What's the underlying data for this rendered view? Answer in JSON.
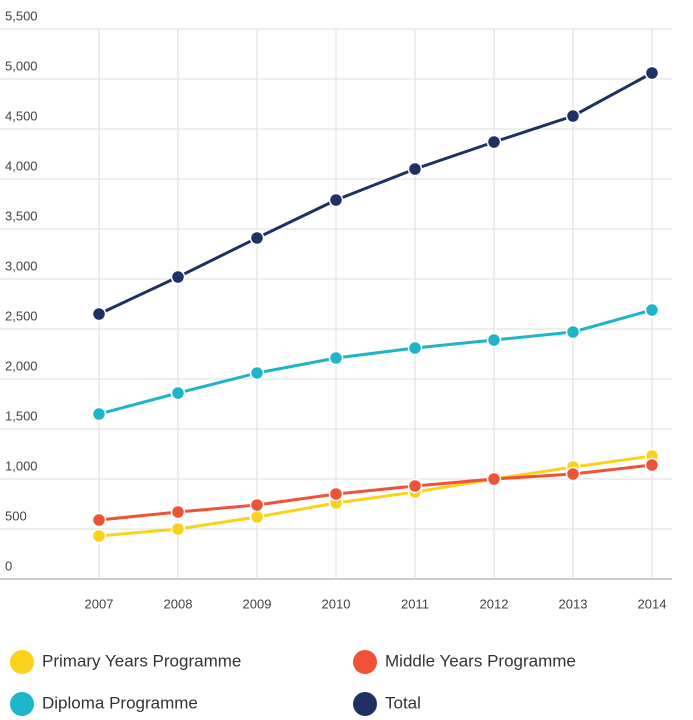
{
  "chart_data": {
    "type": "line",
    "categories": [
      "2007",
      "2008",
      "2009",
      "2010",
      "2011",
      "2012",
      "2013",
      "2014"
    ],
    "series": [
      {
        "name": "Primary Years Programme",
        "color": "#f9d21a",
        "values": [
          430,
          500,
          620,
          760,
          870,
          1000,
          1120,
          1230
        ]
      },
      {
        "name": "Middle Years Programme",
        "color": "#ef5236",
        "values": [
          590,
          670,
          740,
          850,
          930,
          1000,
          1050,
          1140
        ]
      },
      {
        "name": "Diploma Programme",
        "color": "#1fb5c9",
        "values": [
          1650,
          1860,
          2060,
          2210,
          2310,
          2390,
          2470,
          2690
        ]
      },
      {
        "name": "Total",
        "color": "#1d3164",
        "values": [
          2650,
          3020,
          3410,
          3790,
          4100,
          4370,
          4630,
          5060
        ]
      }
    ],
    "ylim": [
      0,
      5500
    ],
    "yticks": [
      0,
      500,
      {
        "value": 1000,
        "label": "1,000"
      },
      {
        "value": 1500,
        "label": "1,500"
      },
      {
        "value": 2000,
        "label": "2,000"
      },
      {
        "value": 2500,
        "label": "2,500"
      },
      {
        "value": 3000,
        "label": "3,000"
      },
      {
        "value": 3500,
        "label": "3,500"
      },
      {
        "value": 4000,
        "label": "4,000"
      },
      {
        "value": 4500,
        "label": "4,500"
      },
      {
        "value": 5000,
        "label": "5,000"
      },
      {
        "value": 5500,
        "label": "5,500"
      }
    ],
    "grid": true
  }
}
